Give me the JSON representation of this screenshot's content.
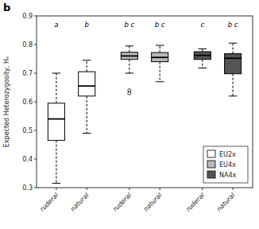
{
  "chart_data": {
    "type": "box",
    "title": "b",
    "y_label": "Expected Heterozygosity, Hₑ",
    "ylim": [
      0.3,
      0.9
    ],
    "yticks": [
      0.3,
      0.4,
      0.5,
      0.6,
      0.7,
      0.8,
      0.9
    ],
    "grid": false,
    "legend": "lower right",
    "series": [
      {
        "name": "EU2x",
        "color": "white",
        "categories": [
          "ruderal",
          "natural"
        ],
        "annotations": [
          "a",
          "b"
        ],
        "values": [
          {
            "q1": 0.465,
            "median": 0.54,
            "q3": 0.595,
            "whislo": 0.315,
            "whishi": 0.7,
            "fliers": []
          },
          {
            "q1": 0.62,
            "median": 0.655,
            "q3": 0.705,
            "whislo": 0.49,
            "whishi": 0.745,
            "fliers": []
          }
        ]
      },
      {
        "name": "EU4x",
        "color": "#b8b8b8",
        "categories": [
          "ruderal",
          "natural"
        ],
        "annotations": [
          "b c",
          "b c"
        ],
        "values": [
          {
            "q1": 0.748,
            "median": 0.76,
            "q3": 0.773,
            "whislo": 0.7,
            "whishi": 0.795,
            "fliers": [
              0.63,
              0.64
            ]
          },
          {
            "q1": 0.74,
            "median": 0.755,
            "q3": 0.772,
            "whislo": 0.67,
            "whishi": 0.797,
            "fliers": []
          }
        ]
      },
      {
        "name": "NA4x",
        "color": "#555555",
        "categories": [
          "ruderal",
          "natural"
        ],
        "annotations": [
          "c",
          "b c"
        ],
        "values": [
          {
            "q1": 0.748,
            "median": 0.762,
            "q3": 0.775,
            "whislo": 0.718,
            "whishi": 0.785,
            "fliers": []
          },
          {
            "q1": 0.698,
            "median": 0.752,
            "q3": 0.768,
            "whislo": 0.62,
            "whishi": 0.805,
            "fliers": []
          }
        ]
      }
    ]
  }
}
